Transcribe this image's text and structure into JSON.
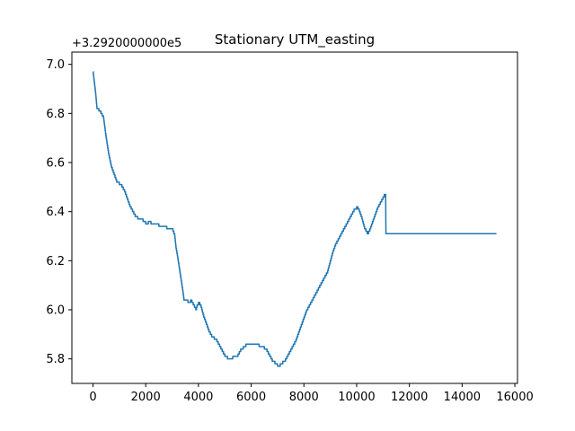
{
  "chart_data": {
    "type": "line",
    "title": "Stationary UTM_easting",
    "xlabel": "",
    "ylabel": "",
    "y_offset_text": "+3.2920000000e5",
    "xlim": [
      -800,
      16100
    ],
    "ylim": [
      5.7,
      7.05
    ],
    "x_ticks": [
      0,
      2000,
      4000,
      6000,
      8000,
      10000,
      12000,
      14000,
      16000
    ],
    "x_tick_labels": [
      "0",
      "2000",
      "4000",
      "6000",
      "8000",
      "10000",
      "12000",
      "14000",
      "16000"
    ],
    "y_ticks": [
      5.8,
      6.0,
      6.2,
      6.4,
      6.6,
      6.8,
      7.0
    ],
    "y_tick_labels": [
      "5.8",
      "6.0",
      "6.2",
      "6.4",
      "6.6",
      "6.8",
      "7.0"
    ],
    "grid": false,
    "series": [
      {
        "color": "#1f77b4",
        "step": 0.01,
        "points": [
          [
            0,
            6.97
          ],
          [
            100,
            6.88
          ],
          [
            150,
            6.82
          ],
          [
            300,
            6.8
          ],
          [
            400,
            6.78
          ],
          [
            500,
            6.7
          ],
          [
            600,
            6.63
          ],
          [
            700,
            6.58
          ],
          [
            800,
            6.55
          ],
          [
            900,
            6.52
          ],
          [
            1000,
            6.51
          ],
          [
            1100,
            6.5
          ],
          [
            1200,
            6.48
          ],
          [
            1300,
            6.45
          ],
          [
            1400,
            6.42
          ],
          [
            1500,
            6.4
          ],
          [
            1600,
            6.38
          ],
          [
            1700,
            6.37
          ],
          [
            1800,
            6.37
          ],
          [
            1900,
            6.36
          ],
          [
            2000,
            6.35
          ],
          [
            2100,
            6.36
          ],
          [
            2200,
            6.35
          ],
          [
            2300,
            6.35
          ],
          [
            2400,
            6.35
          ],
          [
            2500,
            6.34
          ],
          [
            2700,
            6.34
          ],
          [
            2800,
            6.33
          ],
          [
            2900,
            6.33
          ],
          [
            3000,
            6.33
          ],
          [
            3100,
            6.3
          ],
          [
            3150,
            6.25
          ],
          [
            3200,
            6.22
          ],
          [
            3300,
            6.15
          ],
          [
            3400,
            6.08
          ],
          [
            3450,
            6.04
          ],
          [
            3600,
            6.03
          ],
          [
            3700,
            6.04
          ],
          [
            3800,
            6.02
          ],
          [
            3900,
            6.0
          ],
          [
            3950,
            6.02
          ],
          [
            4000,
            6.03
          ],
          [
            4100,
            6.01
          ],
          [
            4200,
            5.97
          ],
          [
            4300,
            5.94
          ],
          [
            4400,
            5.91
          ],
          [
            4500,
            5.89
          ],
          [
            4600,
            5.88
          ],
          [
            4700,
            5.87
          ],
          [
            4800,
            5.85
          ],
          [
            4900,
            5.83
          ],
          [
            5000,
            5.81
          ],
          [
            5100,
            5.8
          ],
          [
            5200,
            5.8
          ],
          [
            5300,
            5.81
          ],
          [
            5400,
            5.81
          ],
          [
            5500,
            5.82
          ],
          [
            5600,
            5.84
          ],
          [
            5700,
            5.85
          ],
          [
            5800,
            5.86
          ],
          [
            5900,
            5.86
          ],
          [
            6000,
            5.86
          ],
          [
            6100,
            5.86
          ],
          [
            6200,
            5.86
          ],
          [
            6300,
            5.85
          ],
          [
            6400,
            5.85
          ],
          [
            6500,
            5.84
          ],
          [
            6600,
            5.83
          ],
          [
            6700,
            5.81
          ],
          [
            6800,
            5.79
          ],
          [
            6900,
            5.78
          ],
          [
            7000,
            5.77
          ],
          [
            7100,
            5.78
          ],
          [
            7200,
            5.79
          ],
          [
            7300,
            5.8
          ],
          [
            7400,
            5.82
          ],
          [
            7500,
            5.84
          ],
          [
            7600,
            5.86
          ],
          [
            7700,
            5.88
          ],
          [
            7800,
            5.91
          ],
          [
            7900,
            5.94
          ],
          [
            8000,
            5.97
          ],
          [
            8100,
            6.0
          ],
          [
            8200,
            6.02
          ],
          [
            8300,
            6.04
          ],
          [
            8400,
            6.06
          ],
          [
            8500,
            6.08
          ],
          [
            8600,
            6.1
          ],
          [
            8700,
            6.12
          ],
          [
            8800,
            6.14
          ],
          [
            8900,
            6.16
          ],
          [
            9000,
            6.2
          ],
          [
            9100,
            6.24
          ],
          [
            9200,
            6.27
          ],
          [
            9300,
            6.29
          ],
          [
            9400,
            6.31
          ],
          [
            9500,
            6.33
          ],
          [
            9600,
            6.35
          ],
          [
            9700,
            6.37
          ],
          [
            9800,
            6.39
          ],
          [
            9900,
            6.41
          ],
          [
            10000,
            6.42
          ],
          [
            10100,
            6.4
          ],
          [
            10200,
            6.37
          ],
          [
            10300,
            6.33
          ],
          [
            10400,
            6.31
          ],
          [
            10500,
            6.33
          ],
          [
            10600,
            6.36
          ],
          [
            10700,
            6.39
          ],
          [
            10800,
            6.42
          ],
          [
            10900,
            6.44
          ],
          [
            11000,
            6.46
          ],
          [
            11050,
            6.47
          ],
          [
            11100,
            6.47
          ],
          [
            11110,
            6.31
          ],
          [
            12000,
            6.31
          ],
          [
            13000,
            6.31
          ],
          [
            14000,
            6.31
          ],
          [
            15300,
            6.31
          ]
        ]
      }
    ]
  }
}
